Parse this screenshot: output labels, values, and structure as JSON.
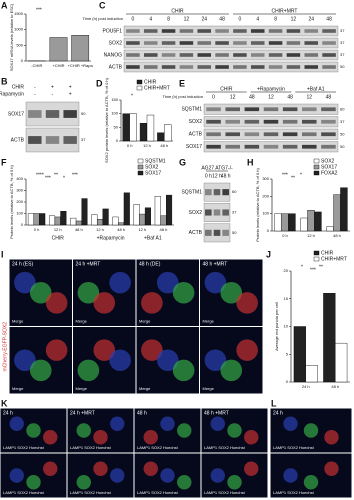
{
  "panels": [
    {
      "label": "A",
      "type": "bar",
      "y_label": "SOX17 mRNA levels (relative to ESC)",
      "categories": [
        "-CHIR",
        "+CHIR",
        "+CHIR +Rapa"
      ],
      "values": [
        5,
        750,
        820
      ],
      "color": "#9a9a9a",
      "ylim": [
        0,
        1500
      ],
      "yticks": [
        0,
        500,
        1000,
        1500
      ],
      "annotations": [
        "***"
      ]
    },
    {
      "label": "B",
      "type": "blot",
      "treatments": [
        {
          "label": "CHIR",
          "marks": [
            "-",
            "+",
            "+"
          ]
        },
        {
          "label": "Rapamycin",
          "marks": [
            "-",
            "-",
            "+"
          ]
        }
      ],
      "rows": [
        {
          "label": "SOX17",
          "mw": 50
        },
        {
          "label": "ACTB",
          "mw": 37
        }
      ]
    },
    {
      "label": "C",
      "type": "blot",
      "conditions": [
        "CHIR",
        "CHIR+MRT"
      ],
      "time_label": "Time (h) post induction",
      "lanes": [
        "0",
        "4",
        "8",
        "12",
        "24",
        "48",
        "0",
        "4",
        "8",
        "12",
        "24",
        "48"
      ],
      "rows": [
        {
          "label": "POU5F1",
          "mw": 37
        },
        {
          "label": "SOX2",
          "mw": 37
        },
        {
          "label": "NANOG",
          "mw": 37
        },
        {
          "label": "ACTB",
          "mw": 50
        }
      ]
    },
    {
      "label": "D",
      "type": "bar",
      "y_label": "SOX2 protein levels (relative to ACTB, % of 0 h)",
      "categories": [
        "0 h",
        "12 h",
        "48 h"
      ],
      "series": [
        {
          "name": "CHIR",
          "color": "#222222",
          "values": [
            100,
            65,
            30
          ]
        },
        {
          "name": "CHIR+MRT",
          "color": "#ffffff",
          "values": [
            100,
            95,
            60
          ]
        }
      ],
      "ylim": [
        0,
        150
      ],
      "yticks": [
        0,
        50,
        100,
        150
      ],
      "annotations": [
        "*"
      ]
    },
    {
      "label": "E",
      "type": "blot",
      "conditions": [
        "CHIR",
        "+Rapamycin",
        "+Baf A1"
      ],
      "time_label": "Time (h) post induction",
      "lanes": [
        "0",
        "12",
        "48",
        "12",
        "48",
        "12",
        "48"
      ],
      "rows": [
        {
          "label": "SQSTM1",
          "mw": 60
        },
        {
          "label": "SOX2",
          "mw": 37
        },
        {
          "label": "ACTB",
          "mw": 50
        },
        {
          "label": "SOX17",
          "mw": 50
        }
      ]
    },
    {
      "label": "F",
      "type": "bar",
      "y_label": "Protein levels (relative to ACTB, % of 0 h)",
      "categories": [
        "0 h",
        "12 h",
        "48 h",
        "12 h",
        "48 h",
        "12 h",
        "48 h"
      ],
      "group_labels": [
        "CHIR",
        "+Rapamycin",
        "+Baf A1"
      ],
      "series": [
        {
          "name": "SQSTM1",
          "color": "#ffffff",
          "values": [
            100,
            80,
            60,
            90,
            70,
            180,
            250
          ]
        },
        {
          "name": "SOX2",
          "color": "#9a9a9a",
          "values": [
            100,
            70,
            35,
            50,
            20,
            95,
            80
          ]
        },
        {
          "name": "SOX17",
          "color": "#222222",
          "values": [
            100,
            120,
            230,
            140,
            280,
            150,
            260
          ]
        }
      ],
      "ylim": [
        0,
        400
      ],
      "yticks": [
        0,
        100,
        200,
        300,
        400
      ],
      "annotations": [
        "****",
        "***",
        "**",
        "*",
        "***"
      ]
    },
    {
      "label": "G",
      "type": "blot",
      "conditions": [
        "AG27 ATG7-/-"
      ],
      "lanes": [
        "0 h",
        "12 h",
        "48 h"
      ],
      "rows": [
        {
          "label": "SQSTM1",
          "mw": 60
        },
        {
          "label": "SOX2",
          "mw": 37
        },
        {
          "label": "ACTB",
          "mw": 50
        }
      ]
    },
    {
      "label": "H",
      "type": "bar",
      "y_label": "Protein levels (relative to ACTB, % of 0 h)",
      "categories": [
        "0 h",
        "12 h",
        "48 h"
      ],
      "series": [
        {
          "name": "SOX2",
          "color": "#ffffff",
          "values": [
            100,
            75,
            25
          ]
        },
        {
          "name": "SOX17",
          "color": "#9a9a9a",
          "values": [
            100,
            120,
            210
          ]
        },
        {
          "name": "FOXA2",
          "color": "#222222",
          "values": [
            100,
            110,
            250
          ]
        }
      ],
      "ylim": [
        0,
        300
      ],
      "yticks": [
        0,
        100,
        200,
        300
      ],
      "annotations": [
        "***",
        "**",
        "*"
      ]
    },
    {
      "label": "I",
      "type": "images",
      "side_label": "mCherry-EGFP-SOX2",
      "images": [
        "24 h (ES)",
        "24 h +MRT",
        "48 h (DE)",
        "48 h +MRT"
      ],
      "overlay": "Merge"
    },
    {
      "label": "J",
      "type": "bar",
      "y_label": "Average red puncta per cell",
      "categories": [
        "24 h",
        "48 h"
      ],
      "series": [
        {
          "name": "CHIR",
          "color": "#222222",
          "values": [
            10,
            16
          ]
        },
        {
          "name": "CHIR+MRT",
          "color": "#ffffff",
          "values": [
            3,
            7
          ]
        }
      ],
      "ylim": [
        0,
        20
      ],
      "yticks": [
        0,
        5,
        10,
        15,
        20
      ],
      "annotations": [
        "*",
        "***",
        "**"
      ]
    },
    {
      "label": "K",
      "type": "images",
      "images": [
        "24 h",
        "24 h +MRT",
        "48 h",
        "48 h +MRT"
      ],
      "overlay": "LAMP1 SOX2 Hoechst"
    },
    {
      "label": "L",
      "type": "images",
      "images": [
        "24 h"
      ],
      "overlay": "LAMP1 SOX2 Hoechst"
    }
  ]
}
